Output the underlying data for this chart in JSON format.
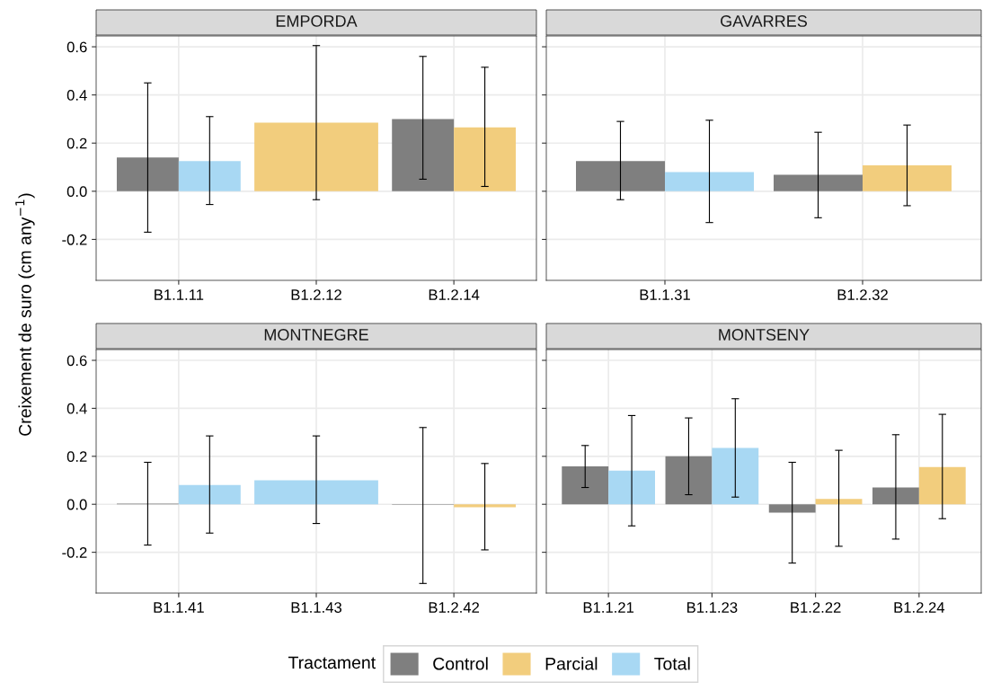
{
  "chart_data": [
    {
      "type": "bar",
      "title": "EMPORDA",
      "ylabel": "Creixement de suro (cm any$^{−1}$)",
      "categories": [
        "B1.1.11",
        "B1.2.12",
        "B1.2.14"
      ],
      "ylim": [
        -0.37,
        0.645
      ],
      "yticks": [
        {
          "value": -0.2,
          "label": "-0.2"
        },
        {
          "value": 0,
          "label": "0.0"
        },
        {
          "value": 0.2,
          "label": "0.2"
        },
        {
          "value": 0.4,
          "label": "0.4"
        },
        {
          "value": 0.6,
          "label": "0.6"
        }
      ],
      "grid": true,
      "legend": "bottom",
      "legend_title": "Tractament",
      "series": [
        {
          "name": "Control",
          "color": "#7f7f7f",
          "values": [
            0.14,
            null,
            0.3
          ],
          "errors": [
            [
              -0.17,
              0.45
            ],
            null,
            [
              0.05,
              0.56
            ]
          ]
        },
        {
          "name": "Parcial",
          "color": "#f2cd7d",
          "values": [
            null,
            0.285,
            0.265
          ],
          "errors": [
            null,
            [
              -0.035,
              0.605
            ],
            [
              0.02,
              0.515
            ]
          ]
        },
        {
          "name": "Total",
          "color": "#a8d8f3",
          "values": [
            0.125,
            null,
            null
          ],
          "errors": [
            [
              -0.055,
              0.31
            ],
            null,
            null
          ]
        }
      ]
    },
    {
      "type": "bar",
      "title": "GAVARRES",
      "categories": [
        "B1.1.31",
        "B1.2.32"
      ],
      "ylim": [
        -0.37,
        0.645
      ],
      "yticks": [
        {
          "value": -0.2,
          "label": null
        },
        {
          "value": 0,
          "label": null
        },
        {
          "value": 0.2,
          "label": null
        },
        {
          "value": 0.4,
          "label": null
        },
        {
          "value": 0.6,
          "label": null
        }
      ],
      "grid": true,
      "tick_labels": "x",
      "series": [
        {
          "color": "#7f7f7f",
          "values": [
            0.125,
            0.068
          ],
          "errors": [
            [
              -0.035,
              0.29
            ],
            [
              -0.11,
              0.245
            ]
          ]
        },
        {
          "color": "#f2cd7d",
          "values": [
            null,
            0.108
          ],
          "errors": [
            null,
            [
              -0.06,
              0.275
            ]
          ]
        },
        {
          "color": "#a8d8f3",
          "values": [
            0.08,
            null
          ],
          "errors": [
            [
              -0.13,
              0.295
            ],
            null
          ]
        }
      ]
    },
    {
      "type": "bar",
      "title": "MONTNEGRE",
      "categories": [
        "B1.1.41",
        "B1.1.43",
        "B1.2.42"
      ],
      "ylim": [
        -0.37,
        0.645
      ],
      "yticks": [
        {
          "value": -0.2,
          "label": "-0.2"
        },
        {
          "value": 0,
          "label": "0.0"
        },
        {
          "value": 0.2,
          "label": "0.2"
        },
        {
          "value": 0.4,
          "label": "0.4"
        },
        {
          "value": 0.6,
          "label": "0.6"
        }
      ],
      "grid": true,
      "series": [
        {
          "color": "#7f7f7f",
          "values": [
            0.003,
            null,
            -0.002
          ],
          "errors": [
            [
              -0.17,
              0.175
            ],
            null,
            [
              -0.33,
              0.32
            ]
          ]
        },
        {
          "color": "#f2cd7d",
          "values": [
            null,
            null,
            -0.012
          ],
          "errors": [
            null,
            null,
            [
              -0.19,
              0.17
            ]
          ]
        },
        {
          "color": "#a8d8f3",
          "values": [
            0.08,
            0.1,
            null
          ],
          "errors": [
            [
              -0.12,
              0.285
            ],
            [
              -0.08,
              0.285
            ],
            null
          ]
        }
      ]
    },
    {
      "type": "bar",
      "title": "MONTSENY",
      "categories": [
        "B1.1.21",
        "B1.1.23",
        "B1.2.22",
        "B1.2.24"
      ],
      "ylim": [
        -0.37,
        0.645
      ],
      "yticks": [
        {
          "value": -0.2,
          "label": null
        },
        {
          "value": 0,
          "label": null
        },
        {
          "value": 0.2,
          "label": null
        },
        {
          "value": 0.4,
          "label": null
        },
        {
          "value": 0.6,
          "label": null
        }
      ],
      "grid": true,
      "tick_labels": "x",
      "series": [
        {
          "color": "#7f7f7f",
          "values": [
            0.158,
            0.2,
            -0.035,
            0.07
          ],
          "errors": [
            [
              0.07,
              0.245
            ],
            [
              0.04,
              0.36
            ],
            [
              -0.245,
              0.175
            ],
            [
              -0.145,
              0.29
            ]
          ]
        },
        {
          "color": "#f2cd7d",
          "values": [
            null,
            null,
            0.022,
            0.155
          ],
          "errors": [
            null,
            null,
            [
              -0.175,
              0.225
            ],
            [
              -0.06,
              0.375
            ]
          ]
        },
        {
          "color": "#a8d8f3",
          "values": [
            0.14,
            0.235,
            null,
            null
          ],
          "errors": [
            [
              -0.09,
              0.37
            ],
            [
              0.03,
              0.44
            ],
            null,
            null
          ]
        }
      ]
    }
  ]
}
